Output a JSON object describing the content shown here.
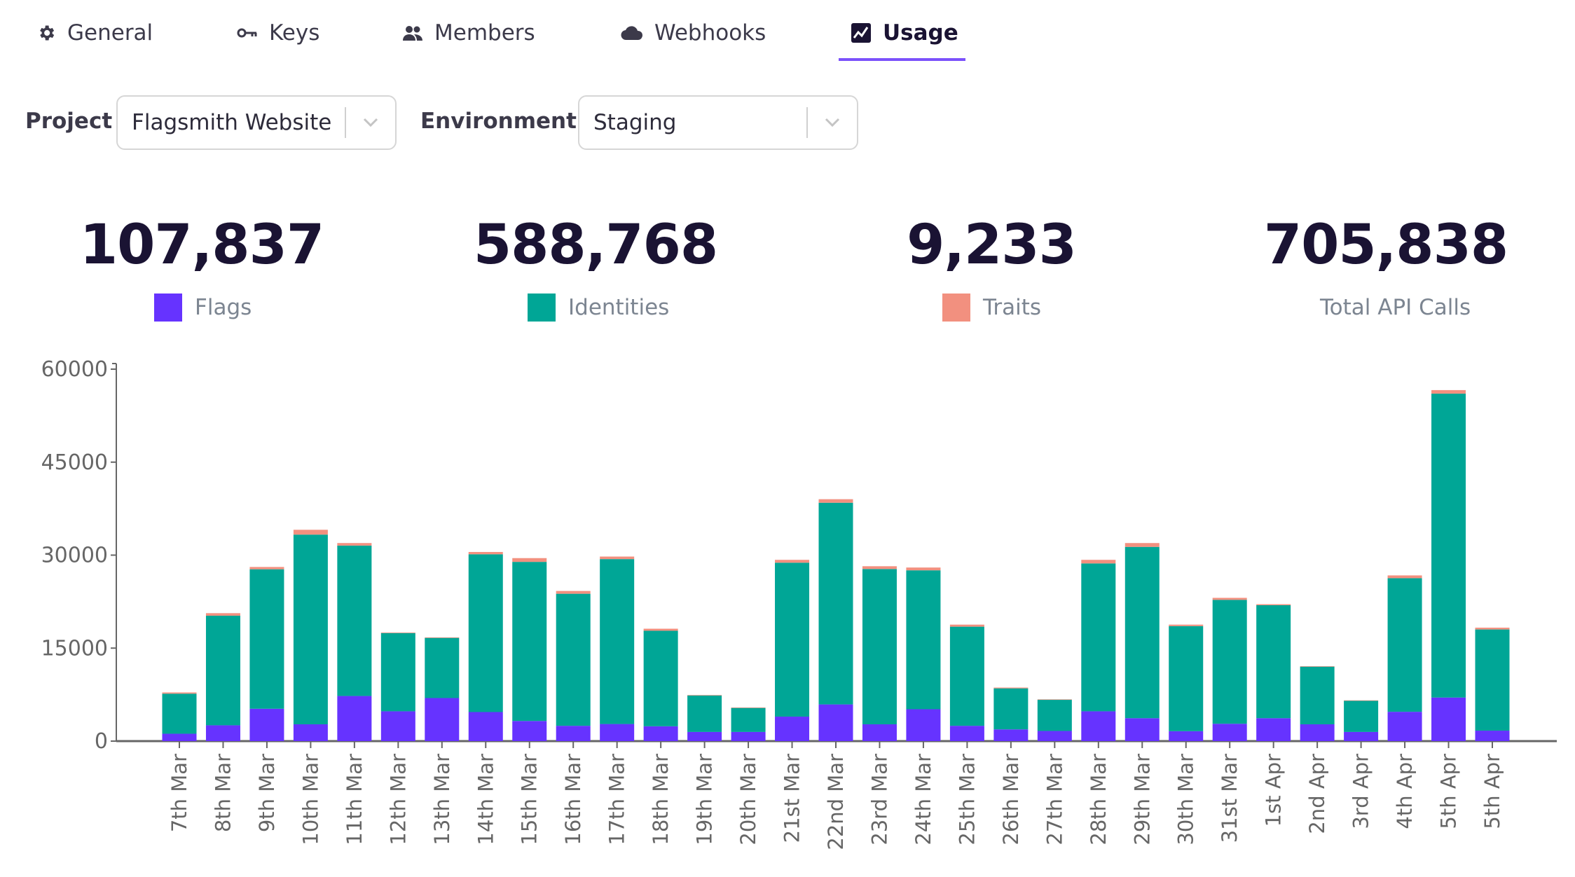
{
  "tabs": [
    {
      "label": "General",
      "icon": "gear-icon",
      "active": false
    },
    {
      "label": "Keys",
      "icon": "key-icon",
      "active": false
    },
    {
      "label": "Members",
      "icon": "users-icon",
      "active": false
    },
    {
      "label": "Webhooks",
      "icon": "cloud-icon",
      "active": false
    },
    {
      "label": "Usage",
      "icon": "chart-icon",
      "active": true
    }
  ],
  "filters": {
    "project_label": "Project",
    "project_value": "Flagsmith Website",
    "environment_label": "Environment",
    "environment_value": "Staging"
  },
  "stats": [
    {
      "value": "107,837",
      "label": "Flags",
      "color": "#6633ff"
    },
    {
      "value": "588,768",
      "label": "Identities",
      "color": "#00a696"
    },
    {
      "value": "9,233",
      "label": "Traits",
      "color": "#f2907f"
    },
    {
      "value": "705,838",
      "label": "Total API Calls"
    }
  ],
  "chart_data": {
    "type": "bar",
    "stacked": true,
    "ylim": [
      0,
      60000
    ],
    "yticks": [
      "0",
      "15000",
      "30000",
      "45000",
      "60000"
    ],
    "ytick_values": [
      0,
      15000,
      30000,
      45000,
      60000
    ],
    "categories": [
      "7th Mar",
      "8th Mar",
      "9th Mar",
      "10th Mar",
      "11th Mar",
      "12th Mar",
      "13th Mar",
      "14th Mar",
      "15th Mar",
      "16th Mar",
      "17th Mar",
      "18th Mar",
      "19th Mar",
      "20th Mar",
      "21st Mar",
      "22nd Mar",
      "23rd Mar",
      "24th Mar",
      "25th Mar",
      "26th Mar",
      "27th Mar",
      "28th Mar",
      "29th Mar",
      "30th Mar",
      "31st Mar",
      "1st Apr",
      "2nd Apr",
      "3rd Apr",
      "4th Apr",
      "5th Apr",
      "5th Apr"
    ],
    "series": [
      {
        "name": "Flags",
        "color": "#6633ff",
        "values": [
          1190,
          2550,
          5220,
          2710,
          7280,
          4810,
          6950,
          4690,
          3250,
          2470,
          2760,
          2390,
          1480,
          1480,
          3950,
          5920,
          2710,
          5140,
          2470,
          1890,
          1640,
          4810,
          3700,
          1600,
          2800,
          3700,
          2710,
          1480,
          4730,
          7030,
          1690
        ]
      },
      {
        "name": "Identities",
        "color": "#00a696",
        "values": [
          6460,
          17680,
          22500,
          30600,
          24260,
          12620,
          9700,
          25450,
          25660,
          21300,
          26600,
          15410,
          5880,
          3870,
          24830,
          32530,
          25050,
          22410,
          15990,
          6620,
          5020,
          23850,
          27630,
          16950,
          19980,
          18220,
          9300,
          5020,
          21550,
          49020,
          16320
        ]
      },
      {
        "name": "Traits",
        "color": "#f2907f",
        "values": [
          200,
          410,
          370,
          780,
          410,
          90,
          90,
          370,
          610,
          450,
          410,
          330,
          80,
          80,
          460,
          570,
          450,
          450,
          330,
          130,
          80,
          580,
          620,
          240,
          330,
          160,
          80,
          80,
          450,
          570,
          290
        ]
      }
    ],
    "grid": false
  }
}
